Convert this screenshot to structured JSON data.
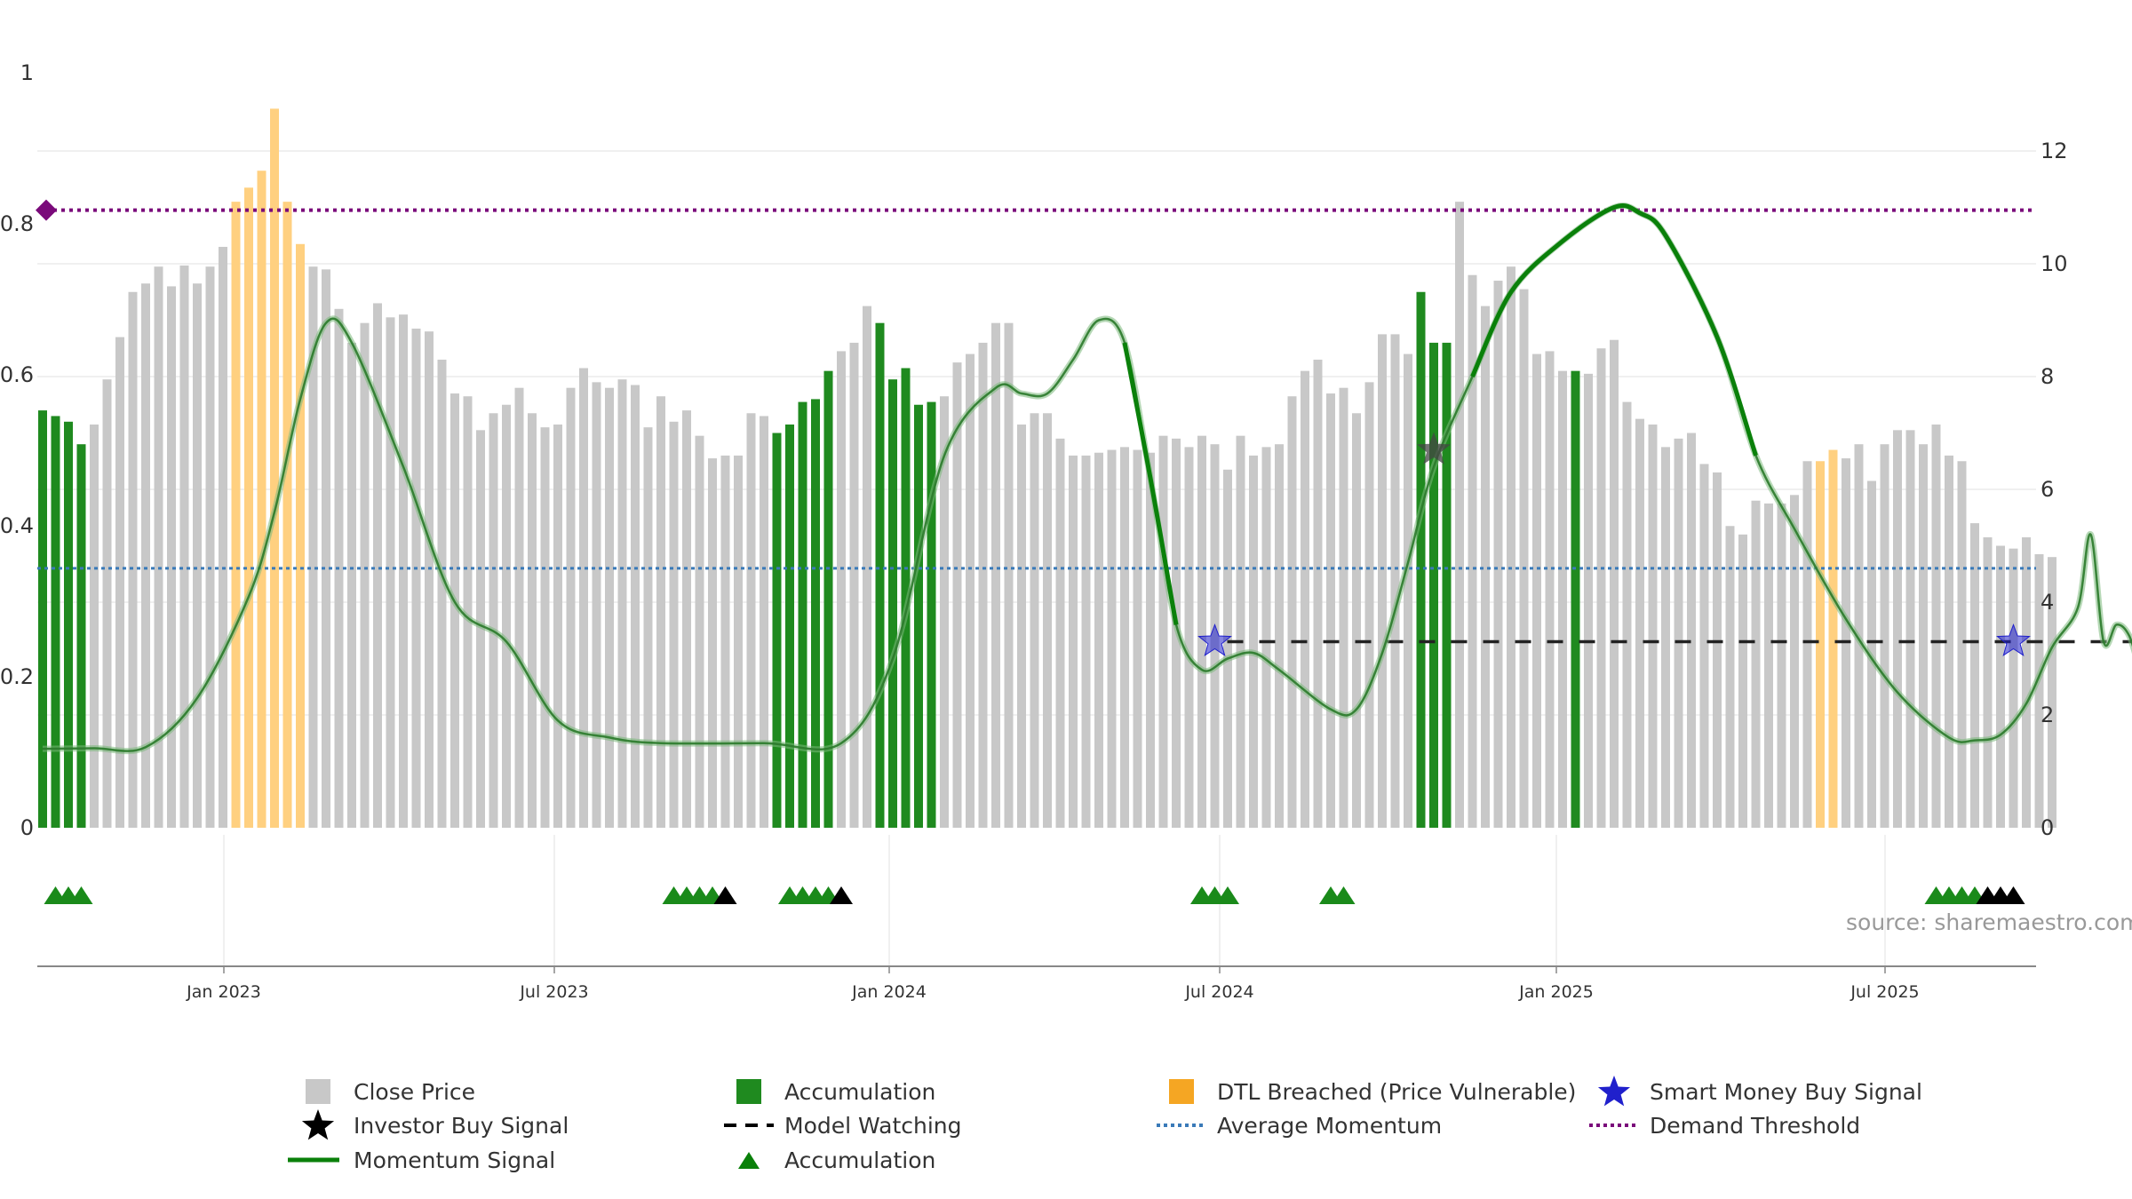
{
  "chart_data": {
    "type": "bar",
    "title": "",
    "source": "source: sharemaestro.com",
    "left_axis": {
      "ticks": [
        "0",
        "0.2",
        "0.4",
        "0.6",
        "0.8",
        "1"
      ],
      "range": [
        0,
        1
      ]
    },
    "right_axis": {
      "ticks": [
        "0",
        "2",
        "4",
        "6",
        "8",
        "10",
        "12"
      ],
      "range": [
        0,
        13.4
      ]
    },
    "x_ticks": [
      "Jan 2023",
      "Jul 2023",
      "Jan 2024",
      "Jul 2024",
      "Jan 2025",
      "Jul 2025"
    ],
    "colors": {
      "close": "#c8c8c8",
      "accumulation": "#1f8a1f",
      "dtl": "#ffd080",
      "momentum": "#0a800a",
      "avg_momentum": "#3a7ab8",
      "demand": "#7a0a7a",
      "watching": "#222222",
      "smart_money": "#2020cc",
      "investor": "#444444"
    },
    "bar_colors": "GGGGRRRRRRRRRRROOOOOORRRRRRRRRRRRRRRRRRRRRRRRRRRRRRRRRRRRGGGGGRRRGGGGGRRRRRRRRRRRRRRRRRRRRRRRRRRRRRRRRRRRRRGGGRRRRRRRRRGRRRRRRRRRRRRRRRRRROORRRRRRRRRRRRRRRRRRRRRRRRRRRRRRRRRRRRRRRRRRRGGGGGGGRRRRRRRRR",
    "close_values": [
      7.4,
      7.3,
      7.2,
      6.8,
      7.15,
      7.95,
      8.7,
      9.5,
      9.65,
      9.95,
      9.6,
      9.97,
      9.65,
      9.95,
      10.3,
      11.1,
      11.35,
      11.65,
      12.75,
      11.1,
      10.35,
      9.95,
      9.9,
      9.2,
      8.6,
      8.95,
      9.3,
      9.05,
      9.1,
      8.85,
      8.8,
      8.3,
      7.7,
      7.65,
      7.05,
      7.35,
      7.5,
      7.8,
      7.35,
      7.1,
      7.15,
      7.8,
      8.15,
      7.9,
      7.8,
      7.95,
      7.85,
      7.1,
      7.65,
      7.2,
      7.4,
      6.95,
      6.55,
      6.6,
      6.6,
      7.35,
      7.3,
      7.0,
      7.15,
      7.55,
      7.6,
      8.1,
      8.45,
      8.6,
      9.25,
      8.95,
      7.95,
      8.15,
      7.5,
      7.55,
      7.65,
      8.25,
      8.4,
      8.6,
      8.95,
      8.95,
      7.15,
      7.35,
      7.35,
      6.9,
      6.6,
      6.6,
      6.65,
      6.7,
      6.75,
      6.7,
      6.65,
      6.95,
      6.9,
      6.75,
      6.95,
      6.8,
      6.35,
      6.95,
      6.6,
      6.75,
      6.8,
      7.65,
      8.1,
      8.3,
      7.7,
      7.8,
      7.35,
      7.9,
      8.75,
      8.75,
      8.4,
      9.5,
      8.6,
      8.6,
      11.1,
      9.8,
      9.25,
      9.7,
      9.95,
      9.55,
      8.4,
      8.45,
      8.1,
      8.1,
      8.05,
      8.5,
      8.65,
      7.55,
      7.25,
      7.15,
      6.75,
      6.9,
      7.0,
      6.45,
      6.3,
      5.35,
      5.2,
      5.8,
      5.75,
      5.75,
      5.9,
      6.5,
      6.5,
      6.7,
      6.55,
      6.8,
      6.15,
      6.8,
      7.05,
      7.05,
      6.8,
      7.15,
      6.6,
      6.5,
      5.4,
      5.15,
      5.0,
      4.95,
      5.15,
      4.85,
      4.8
    ],
    "momentum": [
      [
        0,
        1.4
      ],
      [
        4,
        1.41
      ],
      [
        8,
        1.43
      ],
      [
        12,
        2.3
      ],
      [
        16,
        4.1
      ],
      [
        18,
        5.6
      ],
      [
        20,
        7.6
      ],
      [
        22,
        8.95
      ],
      [
        24,
        8.6
      ],
      [
        28,
        6.4
      ],
      [
        32,
        4.0
      ],
      [
        36,
        3.3
      ],
      [
        40,
        1.9
      ],
      [
        44,
        1.6
      ],
      [
        48,
        1.5
      ],
      [
        56,
        1.5
      ],
      [
        62,
        1.5
      ],
      [
        66,
        3.0
      ],
      [
        70,
        6.6
      ],
      [
        74,
        7.8
      ],
      [
        76,
        7.7
      ],
      [
        78,
        7.7
      ],
      [
        80,
        8.3
      ],
      [
        82,
        9.0
      ],
      [
        84,
        8.6
      ],
      [
        86,
        6.2
      ],
      [
        88,
        3.6
      ],
      [
        90,
        2.8
      ],
      [
        92,
        3.0
      ],
      [
        94,
        3.1
      ],
      [
        96,
        2.8
      ],
      [
        100,
        2.1
      ],
      [
        102,
        2.1
      ],
      [
        104,
        3.1
      ],
      [
        106,
        4.7
      ],
      [
        108,
        6.4
      ],
      [
        111,
        8.0
      ],
      [
        114,
        9.5
      ],
      [
        118,
        10.4
      ],
      [
        122,
        11.0
      ],
      [
        124,
        10.9
      ],
      [
        126,
        10.5
      ],
      [
        130,
        8.7
      ],
      [
        133,
        6.6
      ],
      [
        136,
        5.3
      ],
      [
        140,
        3.7
      ],
      [
        144,
        2.4
      ],
      [
        148,
        1.6
      ],
      [
        150,
        1.55
      ],
      [
        152,
        1.65
      ],
      [
        154,
        2.2
      ],
      [
        156,
        3.2
      ],
      [
        158,
        3.9
      ],
      [
        159,
        5.2
      ],
      [
        160,
        3.3
      ],
      [
        161,
        3.6
      ],
      [
        162,
        3.4
      ],
      [
        163,
        2.7
      ],
      [
        164,
        2.55
      ],
      [
        165,
        2.5
      ]
    ],
    "momentum_bold_segments": [
      [
        84,
        89
      ],
      [
        110,
        134
      ]
    ],
    "average_momentum": 4.6,
    "demand_threshold": 10.95,
    "model_watching": {
      "y": 3.3,
      "from_bar": 91,
      "to_bar": 165
    },
    "smart_money_buy_signals": [
      {
        "bar": 91,
        "y": 3.3
      },
      {
        "bar": 153,
        "y": 3.3
      }
    ],
    "investor_buy_signals": [
      {
        "bar": 108,
        "y": 6.7
      }
    ],
    "accumulation_markers": [
      {
        "bar": 1,
        "color": "green"
      },
      {
        "bar": 2,
        "color": "green"
      },
      {
        "bar": 3,
        "color": "green"
      },
      {
        "bar": 49,
        "color": "green"
      },
      {
        "bar": 50,
        "color": "green"
      },
      {
        "bar": 51,
        "color": "green"
      },
      {
        "bar": 52,
        "color": "green"
      },
      {
        "bar": 53,
        "color": "black"
      },
      {
        "bar": 58,
        "color": "green"
      },
      {
        "bar": 59,
        "color": "green"
      },
      {
        "bar": 60,
        "color": "green"
      },
      {
        "bar": 61,
        "color": "green"
      },
      {
        "bar": 62,
        "color": "black"
      },
      {
        "bar": 90,
        "color": "green"
      },
      {
        "bar": 91,
        "color": "green"
      },
      {
        "bar": 92,
        "color": "green"
      },
      {
        "bar": 100,
        "color": "green"
      },
      {
        "bar": 101,
        "color": "green"
      },
      {
        "bar": 147,
        "color": "green"
      },
      {
        "bar": 148,
        "color": "green"
      },
      {
        "bar": 149,
        "color": "green"
      },
      {
        "bar": 150,
        "color": "green"
      },
      {
        "bar": 151,
        "color": "black"
      },
      {
        "bar": 152,
        "color": "black"
      },
      {
        "bar": 153,
        "color": "black"
      }
    ],
    "legend": [
      {
        "key": "close",
        "label": "Close Price",
        "symbol": "square-gray"
      },
      {
        "key": "accumulation_bar",
        "label": "Accumulation",
        "symbol": "square-green"
      },
      {
        "key": "dtl",
        "label": "DTL Breached (Price Vulnerable)",
        "symbol": "square-orange"
      },
      {
        "key": "smart_money",
        "label": "Smart Money Buy Signal",
        "symbol": "star-blue"
      },
      {
        "key": "investor",
        "label": "Investor Buy Signal",
        "symbol": "star-black"
      },
      {
        "key": "watching",
        "label": "Model Watching",
        "symbol": "dash-black"
      },
      {
        "key": "avg_momentum",
        "label": "Average Momentum",
        "symbol": "dot-blue"
      },
      {
        "key": "demand",
        "label": "Demand Threshold",
        "symbol": "dot-purple"
      },
      {
        "key": "momentum",
        "label": "Momentum Signal",
        "symbol": "line-green"
      },
      {
        "key": "accumulation_marker",
        "label": "Accumulation",
        "symbol": "triangle-green"
      }
    ]
  }
}
